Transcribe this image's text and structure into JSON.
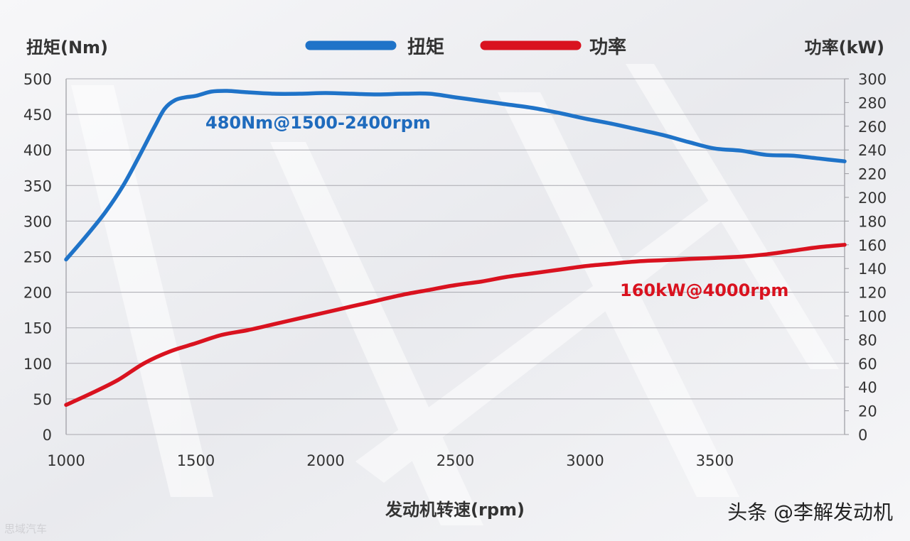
{
  "chart_data": {
    "type": "line",
    "x_axis": {
      "label": "发动机转速(rpm)",
      "range": [
        1000,
        4000
      ],
      "ticks": [
        1000,
        1500,
        2000,
        2500,
        3000,
        3500
      ]
    },
    "y_left": {
      "label": "扭矩(Nm)",
      "range": [
        0,
        500
      ],
      "ticks": [
        0,
        50,
        100,
        150,
        200,
        250,
        300,
        350,
        400,
        450,
        500
      ]
    },
    "y_right": {
      "label": "功率(kW)",
      "range": [
        0,
        300
      ],
      "ticks": [
        0,
        20,
        40,
        60,
        80,
        100,
        120,
        140,
        160,
        180,
        200,
        220,
        240,
        260,
        280,
        300
      ]
    },
    "grid": "horizontal",
    "legend_position": "top-center",
    "series": [
      {
        "name": "扭矩",
        "axis": "left",
        "color": "#1f73c8",
        "annotation": "480Nm@1500-2400rpm",
        "points": [
          [
            1000,
            246
          ],
          [
            1080,
            280
          ],
          [
            1150,
            312
          ],
          [
            1220,
            350
          ],
          [
            1280,
            390
          ],
          [
            1340,
            432
          ],
          [
            1380,
            458
          ],
          [
            1420,
            470
          ],
          [
            1460,
            474
          ],
          [
            1500,
            476
          ],
          [
            1560,
            482
          ],
          [
            1620,
            483
          ],
          [
            1700,
            481
          ],
          [
            1800,
            479
          ],
          [
            1900,
            479
          ],
          [
            2000,
            480
          ],
          [
            2100,
            479
          ],
          [
            2200,
            478
          ],
          [
            2300,
            479
          ],
          [
            2400,
            479
          ],
          [
            2500,
            474
          ],
          [
            2600,
            469
          ],
          [
            2700,
            464
          ],
          [
            2800,
            459
          ],
          [
            2900,
            452
          ],
          [
            3000,
            444
          ],
          [
            3100,
            437
          ],
          [
            3200,
            429
          ],
          [
            3300,
            421
          ],
          [
            3400,
            411
          ],
          [
            3500,
            402
          ],
          [
            3600,
            399
          ],
          [
            3700,
            393
          ],
          [
            3800,
            392
          ],
          [
            3900,
            388
          ],
          [
            4000,
            384
          ]
        ]
      },
      {
        "name": "功率",
        "axis": "right",
        "color": "#d9121f",
        "annotation": "160kW@4000rpm",
        "points": [
          [
            1000,
            25
          ],
          [
            1100,
            35
          ],
          [
            1200,
            46
          ],
          [
            1300,
            60
          ],
          [
            1400,
            70
          ],
          [
            1500,
            77
          ],
          [
            1600,
            84
          ],
          [
            1700,
            88
          ],
          [
            1800,
            93
          ],
          [
            1900,
            98
          ],
          [
            2000,
            103
          ],
          [
            2100,
            108
          ],
          [
            2200,
            113
          ],
          [
            2300,
            118
          ],
          [
            2400,
            122
          ],
          [
            2500,
            126
          ],
          [
            2600,
            129
          ],
          [
            2700,
            133
          ],
          [
            2800,
            136
          ],
          [
            2900,
            139
          ],
          [
            3000,
            142
          ],
          [
            3100,
            144
          ],
          [
            3200,
            146
          ],
          [
            3300,
            147
          ],
          [
            3400,
            148
          ],
          [
            3500,
            149
          ],
          [
            3600,
            150
          ],
          [
            3700,
            152
          ],
          [
            3800,
            155
          ],
          [
            3900,
            158
          ],
          [
            4000,
            160
          ]
        ]
      }
    ],
    "watermark": "头条 @李解发动机",
    "source_mark": "思域汽车"
  }
}
